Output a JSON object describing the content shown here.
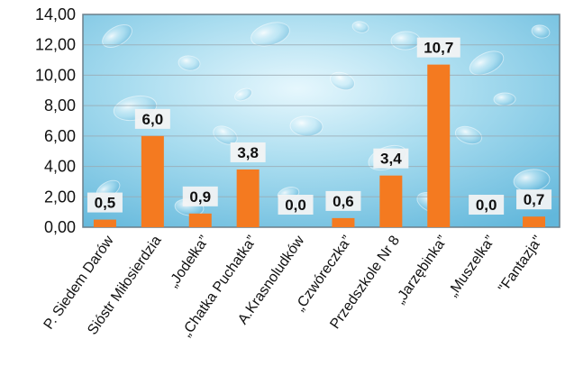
{
  "chart_data": {
    "type": "bar",
    "categories": [
      "P. Siedem Darów",
      "Sióstr Miłosierdzia",
      "„Jodełka”",
      "„Chatka Puchatka”",
      "A.Krasnoludków",
      "„Czwóreczka”",
      "Przedszkole Nr 8",
      "„Jarzębinka”",
      "„Muszelka”",
      "\"Fantazja\""
    ],
    "values": [
      0.5,
      6.0,
      0.9,
      3.8,
      0.0,
      0.6,
      3.4,
      10.7,
      0.0,
      0.7
    ],
    "value_labels": [
      "0,5",
      "6,0",
      "0,9",
      "3,8",
      "0,0",
      "0,6",
      "3,4",
      "10,7",
      "0,0",
      "0,7"
    ],
    "yticks": [
      "0,00",
      "2,00",
      "4,00",
      "6,00",
      "8,00",
      "10,00",
      "12,00",
      "14,00"
    ],
    "ylim": [
      0,
      14
    ],
    "title": "",
    "xlabel": "",
    "ylabel": "",
    "grid": true,
    "legend": "none",
    "colors": {
      "bar": "#f47a20",
      "plot_bg_light": "#dff3fb",
      "plot_bg_mid": "#9fd6ec",
      "plot_bg_dark": "#5cb3d8",
      "gridline": "#9aa9b1",
      "frame": "#6b7f8a",
      "label_box": "#f4f4f4"
    }
  }
}
